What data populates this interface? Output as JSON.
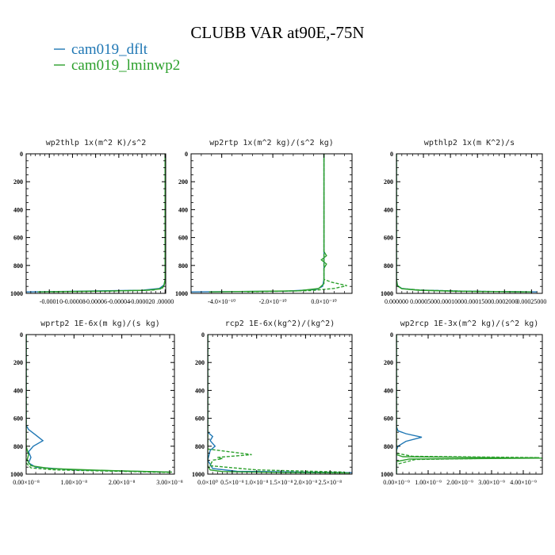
{
  "figure": {
    "title": "CLUBB VAR at90E,-75N",
    "series_colors": {
      "cam019_dflt": "#1f77b4",
      "cam019_lminwp2": "#2ca02c"
    }
  },
  "chart_data": [
    {
      "type": "line",
      "title": "wp2thlp   1x(m^2 K)/s^2",
      "xlim": [
        -0.00012,
        5e-07
      ],
      "ylim": [
        1000,
        0
      ],
      "yticks": [
        "0",
        "200",
        "400",
        "600",
        "800",
        "1000"
      ],
      "xticks": [
        {
          "v": -0.0001,
          "label": "-0.0001"
        },
        {
          "v": -8e-05,
          "label": "0-0.00008"
        },
        {
          "v": -6e-05,
          "label": "-0.00006"
        },
        {
          "v": -4e-05,
          "label": "-0.00004"
        },
        {
          "v": -2e-05,
          "label": "-0.000020"
        },
        {
          "v": 0,
          "label": ".00000"
        }
      ],
      "series": [
        {
          "name": "cam019_dflt",
          "style": "solid",
          "x": [
            0,
            0,
            0,
            -1e-06,
            -5e-06,
            -2e-05,
            -8e-05,
            -0.00012
          ],
          "y": [
            0,
            600,
            900,
            940,
            965,
            978,
            985,
            990
          ]
        },
        {
          "name": "cam019_lminwp2",
          "style": "solid",
          "x": [
            0,
            0,
            0,
            -1e-06,
            -4e-06,
            -1.8e-05,
            -7e-05,
            -0.00011
          ],
          "y": [
            0,
            600,
            900,
            945,
            968,
            979,
            986,
            990
          ]
        },
        {
          "name": "cam019_lminwp2",
          "style": "dashed",
          "x": [
            0,
            0,
            -2e-06,
            -1e-05,
            -5e-05,
            -0.0001
          ],
          "y": [
            0,
            920,
            960,
            976,
            984,
            989
          ]
        }
      ]
    },
    {
      "type": "line",
      "title": "wp2rtp   1x(m^2 kg)/(s^2 kg)",
      "xlim": [
        -5.2e-10,
        1.1e-10
      ],
      "ylim": [
        1000,
        0
      ],
      "yticks": [
        "0",
        "200",
        "400",
        "600",
        "800",
        "1000"
      ],
      "xticks": [
        {
          "v": -4e-10,
          "label": "-4.0×10⁻¹⁰"
        },
        {
          "v": -2e-10,
          "label": "-2.0×10⁻¹⁰"
        },
        {
          "v": 0,
          "label": "0.0×10⁻¹⁰"
        }
      ],
      "series": [
        {
          "name": "cam019_dflt",
          "style": "solid",
          "x": [
            0,
            0,
            0,
            -5e-12,
            -3e-11,
            -1.5e-10,
            -5.2e-10
          ],
          "y": [
            0,
            700,
            900,
            950,
            972,
            984,
            990
          ]
        },
        {
          "name": "cam019_lminwp2",
          "style": "solid",
          "x": [
            0,
            0,
            1e-11,
            -1e-11,
            1e-11,
            0,
            0,
            -2e-11,
            -1e-10,
            -4.5e-10
          ],
          "y": [
            0,
            700,
            730,
            760,
            790,
            820,
            930,
            965,
            982,
            990
          ]
        },
        {
          "name": "cam019_lminwp2",
          "style": "dashed",
          "x": [
            0,
            0,
            3e-11,
            9e-11,
            4e-11,
            -5e-11,
            -3e-10
          ],
          "y": [
            0,
            900,
            920,
            945,
            965,
            980,
            990
          ]
        }
      ]
    },
    {
      "type": "line",
      "title": "wpthlp2   1x(m K^2)/s",
      "xlim": [
        0,
        0.00027
      ],
      "ylim": [
        1000,
        0
      ],
      "yticks": [
        "0",
        "200",
        "400",
        "600",
        "800",
        "1000"
      ],
      "xticks": [
        {
          "v": 0,
          "label": "0.000000"
        },
        {
          "v": 5e-05,
          "label": "0.0000500"
        },
        {
          "v": 0.0001,
          "label": "0.0001000"
        },
        {
          "v": 0.00015,
          "label": "0.0001500"
        },
        {
          "v": 0.0002,
          "label": "0.0002000"
        },
        {
          "v": 0.00025,
          "label": "0.00025000"
        }
      ],
      "series": [
        {
          "name": "cam019_dflt",
          "style": "solid",
          "x": [
            0,
            0,
            2e-06,
            1e-05,
            4e-05,
            0.00012,
            0.00026
          ],
          "y": [
            0,
            900,
            945,
            965,
            976,
            984,
            990
          ]
        },
        {
          "name": "cam019_lminwp2",
          "style": "solid",
          "x": [
            0,
            0,
            2e-06,
            1e-05,
            4e-05,
            0.00011,
            0.00025
          ],
          "y": [
            0,
            900,
            948,
            967,
            978,
            985,
            990
          ]
        },
        {
          "name": "cam019_lminwp2",
          "style": "dashed",
          "x": [
            0,
            0,
            1e-05,
            5e-05,
            0.00014,
            0.00024
          ],
          "y": [
            0,
            940,
            966,
            978,
            985,
            990
          ]
        }
      ]
    },
    {
      "type": "line",
      "title": "wprtp2   1E-6x(m kg)/(s kg)",
      "xlim": [
        0,
        3.1e-08
      ],
      "ylim": [
        1000,
        0
      ],
      "yticks": [
        "0",
        "200",
        "400",
        "600",
        "800",
        "1000"
      ],
      "xticks": [
        {
          "v": 0,
          "label": "0.00×10⁻⁸"
        },
        {
          "v": 1e-08,
          "label": "1.00×10⁻⁸"
        },
        {
          "v": 2e-08,
          "label": "2.00×10⁻⁸"
        },
        {
          "v": 3e-08,
          "label": "3.00×10⁻⁸"
        }
      ],
      "series": [
        {
          "name": "cam019_dflt",
          "style": "solid",
          "x": [
            0,
            0,
            5e-10,
            2e-09,
            3.5e-09,
            1.5e-09,
            5e-10,
            1e-09,
            5e-10,
            2e-09,
            1e-08,
            3e-08
          ],
          "y": [
            0,
            650,
            680,
            720,
            760,
            800,
            840,
            880,
            920,
            950,
            970,
            985
          ]
        },
        {
          "name": "cam019_lminwp2",
          "style": "solid",
          "x": [
            0,
            0,
            5e-10,
            2e-10,
            1e-09,
            5e-09,
            1.8e-08,
            3.05e-08
          ],
          "y": [
            0,
            800,
            860,
            900,
            940,
            960,
            975,
            985
          ]
        },
        {
          "name": "cam019_lminwp2",
          "style": "dashed",
          "x": [
            0,
            0,
            1e-09,
            6e-09,
            2e-08,
            3e-08
          ],
          "y": [
            0,
            920,
            955,
            970,
            980,
            988
          ]
        }
      ]
    },
    {
      "type": "line",
      "title": "rcp2   1E-6x(kg^2)/(kg^2)",
      "xlim": [
        0,
        2.95e-08
      ],
      "ylim": [
        1000,
        0
      ],
      "yticks": [
        "0",
        "200",
        "400",
        "600",
        "800",
        "1000"
      ],
      "xticks": [
        {
          "v": 0,
          "label": "0.0×10⁰"
        },
        {
          "v": 5e-09,
          "label": "0.5×10⁻⁸"
        },
        {
          "v": 1e-08,
          "label": "1.0×10⁻⁸"
        },
        {
          "v": 1.5e-08,
          "label": "1.5×10⁻⁸"
        },
        {
          "v": 2e-08,
          "label": "2.0×10⁻⁸"
        },
        {
          "v": 2.5e-08,
          "label": "2.5×10⁻⁸"
        }
      ],
      "series": [
        {
          "name": "cam019_dflt",
          "style": "solid",
          "x": [
            0,
            0,
            1e-09,
            5e-10,
            1.5e-09,
            5e-10,
            0,
            1e-09,
            6e-09,
            2.95e-08
          ],
          "y": [
            0,
            700,
            730,
            760,
            800,
            830,
            900,
            960,
            980,
            990
          ]
        },
        {
          "name": "cam019_lminwp2",
          "style": "solid",
          "x": [
            0,
            0,
            5e-10,
            3e-09,
            1.5e-08,
            2.9e-08
          ],
          "y": [
            0,
            940,
            970,
            982,
            988,
            992
          ]
        },
        {
          "name": "cam019_lminwp2",
          "style": "dashed",
          "x": [
            0,
            0,
            9e-09,
            2e-09,
            3e-09,
            1e-09,
            5e-10,
            1e-08,
            2.8e-08
          ],
          "y": [
            0,
            820,
            860,
            880,
            890,
            900,
            940,
            970,
            985
          ]
        }
      ]
    },
    {
      "type": "line",
      "title": "wp2rcp   1E-3x(m^2 kg)/(s^2 kg)",
      "xlim": [
        0,
        4.6e-09
      ],
      "ylim": [
        1000,
        0
      ],
      "yticks": [
        "0",
        "200",
        "400",
        "600",
        "800",
        "1000"
      ],
      "xticks": [
        {
          "v": 0,
          "label": "0.00×10⁻⁹"
        },
        {
          "v": 1e-09,
          "label": "1.00×10⁻⁹"
        },
        {
          "v": 2e-09,
          "label": "2.00×10⁻⁹"
        },
        {
          "v": 3e-09,
          "label": "3.00×10⁻⁹"
        },
        {
          "v": 4e-09,
          "label": "4.00×10⁻⁹"
        }
      ],
      "series": [
        {
          "name": "cam019_dflt",
          "style": "solid",
          "x": [
            0,
            0,
            5e-11,
            3e-10,
            8e-10,
            3e-10,
            5e-11,
            0,
            0
          ],
          "y": [
            0,
            660,
            690,
            710,
            735,
            765,
            800,
            830,
            1000
          ]
        },
        {
          "name": "cam019_lminwp2",
          "style": "solid",
          "x": [
            0,
            0,
            2e-10,
            4.6e-09,
            4e-10,
            0,
            0
          ],
          "y": [
            0,
            860,
            875,
            885,
            892,
            910,
            1000
          ]
        },
        {
          "name": "cam019_lminwp2",
          "style": "dashed",
          "x": [
            0,
            0,
            5e-10,
            4.5e-09,
            6e-10,
            0,
            0
          ],
          "y": [
            0,
            850,
            872,
            882,
            895,
            930,
            1000
          ]
        }
      ]
    }
  ]
}
